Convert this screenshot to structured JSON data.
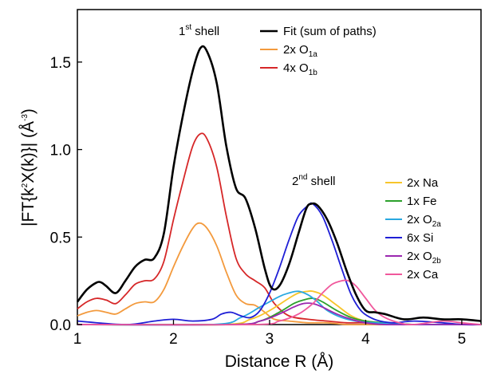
{
  "chart_data": {
    "type": "line",
    "xlabel": "Distance R (Å)",
    "ylabel_parts": {
      "pre": "|FT{k",
      "sup1": "2",
      "mid": "X(k)}| (Å",
      "sup2": "-3",
      "post": ")"
    },
    "xlim": [
      1,
      5.2
    ],
    "ylim": [
      0,
      1.8
    ],
    "x_ticks": [
      1,
      2,
      3,
      4,
      5
    ],
    "y_ticks": [
      0.0,
      0.5,
      1.0,
      1.5
    ],
    "x_tick_labels": [
      "1",
      "2",
      "3",
      "4",
      "5"
    ],
    "y_tick_labels": [
      "0.0",
      "0.5",
      "1.0",
      "1.5"
    ],
    "grid": false,
    "annotations": [
      {
        "base": "1",
        "sup": "st",
        "rest": " shell"
      },
      {
        "base": "2",
        "sup": "nd",
        "rest": " shell"
      }
    ],
    "series": [
      {
        "name": "Fit (sum of paths)",
        "label_base": "Fit (sum of paths)",
        "label_sub": "",
        "color": "#000000",
        "x": [
          1.0,
          1.1,
          1.2,
          1.25,
          1.3,
          1.4,
          1.5,
          1.6,
          1.7,
          1.8,
          1.9,
          2.0,
          2.1,
          2.2,
          2.28,
          2.35,
          2.45,
          2.55,
          2.65,
          2.75,
          2.85,
          2.95,
          3.02,
          3.1,
          3.2,
          3.3,
          3.38,
          3.43,
          3.5,
          3.6,
          3.7,
          3.8,
          3.9,
          4.0,
          4.1,
          4.2,
          4.4,
          4.6,
          4.8,
          5.0,
          5.2
        ],
        "y": [
          0.13,
          0.2,
          0.24,
          0.24,
          0.22,
          0.18,
          0.25,
          0.33,
          0.37,
          0.38,
          0.52,
          0.9,
          1.2,
          1.45,
          1.58,
          1.56,
          1.38,
          1.02,
          0.78,
          0.72,
          0.55,
          0.32,
          0.21,
          0.22,
          0.34,
          0.52,
          0.66,
          0.69,
          0.68,
          0.6,
          0.47,
          0.31,
          0.17,
          0.08,
          0.07,
          0.06,
          0.03,
          0.04,
          0.03,
          0.03,
          0.02
        ]
      },
      {
        "name": "2x O1a",
        "label_base": "2x O",
        "label_sub": "1a",
        "color": "#f39a3d",
        "x": [
          1.0,
          1.1,
          1.2,
          1.3,
          1.4,
          1.5,
          1.6,
          1.7,
          1.8,
          1.9,
          2.0,
          2.1,
          2.2,
          2.27,
          2.35,
          2.45,
          2.55,
          2.65,
          2.75,
          2.85,
          2.95,
          3.05,
          3.2,
          3.4,
          3.6,
          3.8,
          4.0,
          4.5,
          5.0,
          5.2
        ],
        "y": [
          0.05,
          0.07,
          0.08,
          0.07,
          0.06,
          0.09,
          0.12,
          0.13,
          0.13,
          0.2,
          0.33,
          0.45,
          0.55,
          0.58,
          0.55,
          0.45,
          0.3,
          0.17,
          0.12,
          0.11,
          0.07,
          0.03,
          0.02,
          0.01,
          0.01,
          0.0,
          0.0,
          0.0,
          0.0,
          0.0
        ]
      },
      {
        "name": "4x O1b",
        "label_base": "4x O",
        "label_sub": "1b",
        "color": "#d62728",
        "x": [
          1.0,
          1.1,
          1.2,
          1.3,
          1.4,
          1.5,
          1.6,
          1.7,
          1.8,
          1.9,
          2.0,
          2.1,
          2.2,
          2.28,
          2.35,
          2.45,
          2.55,
          2.65,
          2.75,
          2.85,
          2.95,
          3.05,
          3.2,
          3.4,
          3.6,
          3.8,
          4.0,
          4.5,
          5.0,
          5.2
        ],
        "y": [
          0.09,
          0.13,
          0.15,
          0.14,
          0.12,
          0.17,
          0.23,
          0.25,
          0.26,
          0.36,
          0.6,
          0.82,
          1.02,
          1.09,
          1.06,
          0.9,
          0.62,
          0.38,
          0.29,
          0.25,
          0.21,
          0.12,
          0.05,
          0.03,
          0.02,
          0.01,
          0.01,
          0.0,
          0.0,
          0.0
        ]
      },
      {
        "name": "2x Na",
        "label_base": "2x Na",
        "label_sub": "",
        "color": "#f7c52b",
        "x": [
          1.0,
          2.5,
          2.8,
          3.0,
          3.2,
          3.3,
          3.4,
          3.45,
          3.55,
          3.7,
          3.85,
          4.0,
          4.2,
          4.5,
          5.0,
          5.2
        ],
        "y": [
          0.0,
          0.0,
          0.03,
          0.08,
          0.15,
          0.18,
          0.19,
          0.19,
          0.17,
          0.11,
          0.05,
          0.02,
          0.01,
          0.0,
          0.0,
          0.0
        ]
      },
      {
        "name": "1x Fe",
        "label_base": "1x Fe",
        "label_sub": "",
        "color": "#2ca02c",
        "x": [
          1.0,
          2.6,
          2.9,
          3.1,
          3.25,
          3.35,
          3.45,
          3.55,
          3.7,
          3.85,
          4.0,
          4.2,
          4.5,
          5.0,
          5.2
        ],
        "y": [
          0.0,
          0.0,
          0.02,
          0.07,
          0.12,
          0.14,
          0.15,
          0.13,
          0.08,
          0.04,
          0.02,
          0.01,
          0.0,
          0.0,
          0.0
        ]
      },
      {
        "name": "2x O2a",
        "label_base": "2x O",
        "label_sub": "2a",
        "color": "#29a8e0",
        "x": [
          1.0,
          2.4,
          2.7,
          2.9,
          3.1,
          3.2,
          3.3,
          3.4,
          3.5,
          3.6,
          3.75,
          3.9,
          4.1,
          4.5,
          5.0,
          5.2
        ],
        "y": [
          0.0,
          0.0,
          0.04,
          0.1,
          0.16,
          0.18,
          0.19,
          0.17,
          0.13,
          0.08,
          0.04,
          0.02,
          0.01,
          0.0,
          0.0,
          0.0
        ]
      },
      {
        "name": "6x Si",
        "label_base": "6x Si",
        "label_sub": "",
        "color": "#1f1fd6",
        "x": [
          1.0,
          1.5,
          1.8,
          2.0,
          2.2,
          2.4,
          2.5,
          2.6,
          2.7,
          2.8,
          2.9,
          3.0,
          3.1,
          3.2,
          3.3,
          3.4,
          3.45,
          3.55,
          3.65,
          3.75,
          3.85,
          3.95,
          4.05,
          4.15,
          4.3,
          4.5,
          4.8,
          5.0,
          5.2
        ],
        "y": [
          0.02,
          0.0,
          0.02,
          0.03,
          0.02,
          0.03,
          0.06,
          0.07,
          0.05,
          0.04,
          0.08,
          0.18,
          0.32,
          0.48,
          0.62,
          0.68,
          0.69,
          0.62,
          0.48,
          0.32,
          0.17,
          0.08,
          0.04,
          0.02,
          0.01,
          0.02,
          0.01,
          0.0,
          0.0
        ]
      },
      {
        "name": "2x O2b",
        "label_base": "2x O",
        "label_sub": "2b",
        "color": "#9b27b0",
        "x": [
          1.0,
          2.6,
          2.9,
          3.1,
          3.25,
          3.35,
          3.45,
          3.55,
          3.7,
          3.85,
          4.0,
          4.2,
          4.5,
          5.0,
          5.2
        ],
        "y": [
          0.0,
          0.0,
          0.02,
          0.06,
          0.1,
          0.12,
          0.12,
          0.1,
          0.06,
          0.03,
          0.01,
          0.0,
          0.0,
          0.0,
          0.0
        ]
      },
      {
        "name": "2x Ca",
        "label_base": "2x Ca",
        "label_sub": "",
        "color": "#f0589c",
        "x": [
          1.0,
          2.8,
          3.1,
          3.3,
          3.45,
          3.55,
          3.65,
          3.75,
          3.82,
          3.9,
          4.0,
          4.1,
          4.2,
          4.35,
          4.5,
          4.8,
          5.0,
          5.2
        ],
        "y": [
          0.0,
          0.0,
          0.02,
          0.06,
          0.12,
          0.18,
          0.23,
          0.25,
          0.25,
          0.22,
          0.15,
          0.08,
          0.04,
          0.01,
          0.0,
          0.02,
          0.01,
          0.0
        ]
      }
    ]
  }
}
